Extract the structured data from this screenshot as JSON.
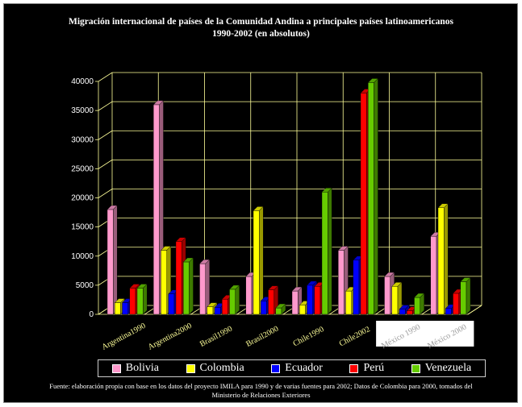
{
  "chart_data": {
    "type": "bar",
    "title": "Migración internacional de países de la Comunidad Andina a principales países latinoamericanos",
    "subtitle": "1990-2002 (en absolutos)",
    "categories": [
      "Argentina1990",
      "Argentina2000",
      "Brasil1990",
      "Brasil2000",
      "Chile1990",
      "Chile2002",
      "México 1990",
      "México 2000"
    ],
    "series": [
      {
        "name": "Bolivia",
        "color": "#ff99cc",
        "values": [
          18000,
          36000,
          8700,
          6500,
          4000,
          11000,
          6500,
          13400
        ]
      },
      {
        "name": "Colombia",
        "color": "#ffff00",
        "values": [
          2000,
          11000,
          1300,
          17800,
          1600,
          4000,
          4800,
          18300
        ]
      },
      {
        "name": "Ecuador",
        "color": "#0000ff",
        "values": [
          2000,
          3500,
          1200,
          2300,
          5000,
          9300,
          900,
          1000
        ]
      },
      {
        "name": "Perú",
        "color": "#ff0000",
        "values": [
          4500,
          12500,
          2600,
          4200,
          4800,
          38000,
          600,
          3600
        ]
      },
      {
        "name": "Venezuela",
        "color": "#66cc00",
        "values": [
          4500,
          9000,
          4300,
          1100,
          21000,
          39800,
          2900,
          5600
        ]
      }
    ],
    "ylim": [
      0,
      40000
    ],
    "yticks": [
      "0",
      "5000",
      "10000",
      "15000",
      "20000",
      "25000",
      "30000",
      "35000",
      "40000"
    ],
    "grid": true,
    "legend_position": "bottom"
  },
  "source": "Fuente: elaboración propia con base en los datos del proyecto IMILA para 1990 y  de varias fuentes para 2002; Datos de Colombia para  2000, tomados del  Ministerio de Relaciones Exteriores"
}
